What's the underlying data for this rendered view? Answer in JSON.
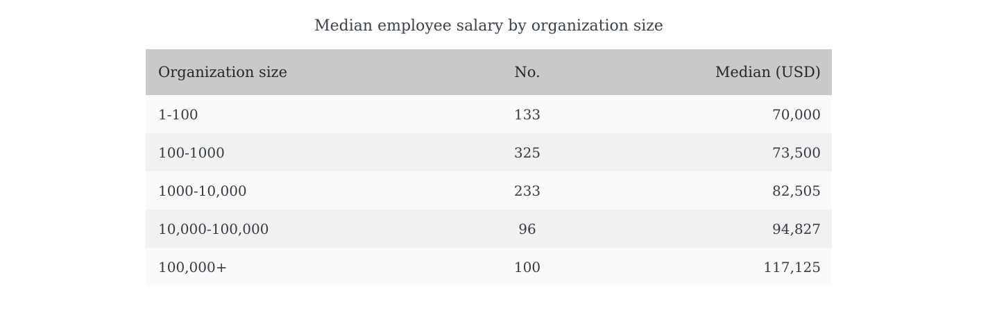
{
  "title": "Median employee salary by organization size",
  "table": {
    "columns": [
      {
        "label": "Organization size",
        "align": "left"
      },
      {
        "label": "No.",
        "align": "center"
      },
      {
        "label": "Median (USD)",
        "align": "right"
      }
    ],
    "rows": [
      [
        "1-100",
        "133",
        "70,000"
      ],
      [
        "100-1000",
        "325",
        "73,500"
      ],
      [
        "1000-10,000",
        "233",
        "82,505"
      ],
      [
        "10,000-100,000",
        "96",
        "94,827"
      ],
      [
        "100,000+",
        "100",
        "117,125"
      ]
    ]
  },
  "colors": {
    "header-bg": "#c9c9c9",
    "row-light": "#fafafa",
    "row-dark": "#f1f1f1",
    "header-text": "#24272b",
    "cell-text": "#363b42",
    "title-text": "#3d4248",
    "page-bg": "#ffffff"
  },
  "chart_data": {
    "type": "table",
    "title": "Median employee salary by organization size",
    "columns": [
      "Organization size",
      "No.",
      "Median (USD)"
    ],
    "rows": [
      {
        "organization_size": "1-100",
        "no": 133,
        "median_usd": 70000
      },
      {
        "organization_size": "100-1000",
        "no": 325,
        "median_usd": 73500
      },
      {
        "organization_size": "1000-10,000",
        "no": 233,
        "median_usd": 82505
      },
      {
        "organization_size": "10,000-100,000",
        "no": 96,
        "median_usd": 94827
      },
      {
        "organization_size": "100,000+",
        "no": 100,
        "median_usd": 117125
      }
    ],
    "layout": {
      "header_background": "#c9c9c9",
      "row_striping": true,
      "grid": false
    }
  }
}
